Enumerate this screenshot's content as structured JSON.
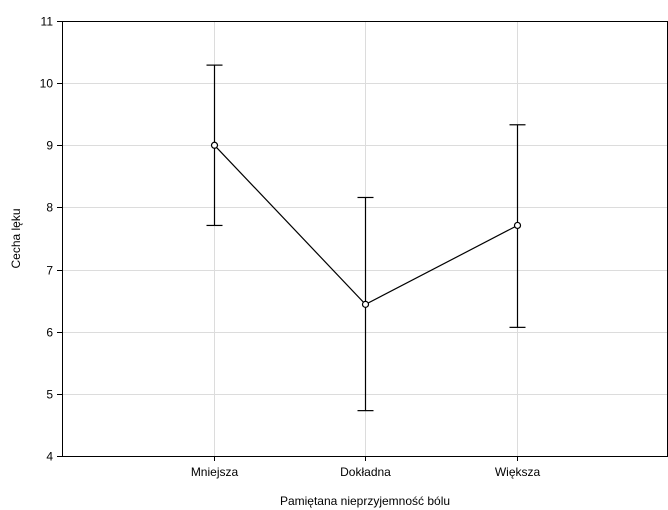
{
  "chart_data": {
    "type": "line",
    "title": "",
    "xlabel": "Pamiętana nieprzyjemność bólu",
    "ylabel": "Cecha lęku",
    "ylim": [
      4,
      11
    ],
    "yticks": [
      4,
      5,
      6,
      7,
      8,
      9,
      10,
      11
    ],
    "categories": [
      "Mniejsza",
      "Dokładna",
      "Większa"
    ],
    "grid": true,
    "series": [
      {
        "values": [
          9.0,
          6.44,
          7.71
        ],
        "error_lower": [
          7.71,
          4.73,
          6.07
        ],
        "error_upper": [
          10.29,
          8.16,
          9.33
        ]
      }
    ]
  }
}
